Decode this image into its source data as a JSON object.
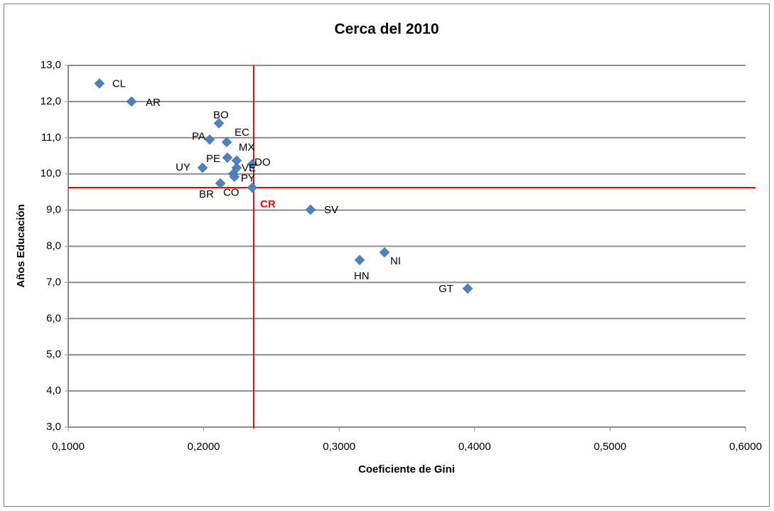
{
  "chart_data": {
    "type": "scatter",
    "title": "Cerca del 2010",
    "xlabel": "Coeficiente de Gini",
    "ylabel": "Años Educación",
    "point_labels": [
      "CL",
      "AR",
      "BO",
      "PA",
      "EC",
      "PE",
      "MX",
      "DO",
      "UY",
      "VE",
      "CO",
      "PY",
      "BR",
      "CR",
      "SV",
      "NI",
      "HN",
      "GT"
    ],
    "x": [
      0.123,
      0.1467,
      0.2112,
      0.2044,
      0.217,
      0.2175,
      0.2243,
      0.2359,
      0.1992,
      0.2243,
      0.2217,
      0.2227,
      0.2123,
      0.2359,
      0.2789,
      0.3335,
      0.3151,
      0.3949
    ],
    "values": [
      12.5,
      12.0,
      11.4,
      10.95,
      10.88,
      10.45,
      10.37,
      10.27,
      10.17,
      10.17,
      10.0,
      9.92,
      9.74,
      9.62,
      9.01,
      7.83,
      7.62,
      6.83
    ],
    "color": "#4f81bd",
    "highlight": "CR",
    "highlight_color": "#ff0000",
    "xlim": [
      0.1,
      0.6
    ],
    "xticks": [
      {
        "value": 0.1,
        "label": "0,1000"
      },
      {
        "value": 0.2,
        "label": "0,2000"
      },
      {
        "value": 0.3,
        "label": "0,3000"
      },
      {
        "value": 0.4,
        "label": "0,4000"
      },
      {
        "value": 0.5,
        "label": "0,5000"
      },
      {
        "value": 0.6,
        "label": "0,6000"
      }
    ],
    "ylim": [
      3,
      13
    ],
    "yticks": [
      {
        "value": 3,
        "label": "3,0"
      },
      {
        "value": 4,
        "label": "4,0"
      },
      {
        "value": 5,
        "label": "5,0"
      },
      {
        "value": 6,
        "label": "6,0"
      },
      {
        "value": 7,
        "label": "7,0"
      },
      {
        "value": 8,
        "label": "8,0"
      },
      {
        "value": 9,
        "label": "9,0"
      },
      {
        "value": 10,
        "label": "10,0"
      },
      {
        "value": 11,
        "label": "11,0"
      },
      {
        "value": 12,
        "label": "12,0"
      },
      {
        "value": 13,
        "label": "13,0"
      }
    ],
    "grid": true
  }
}
